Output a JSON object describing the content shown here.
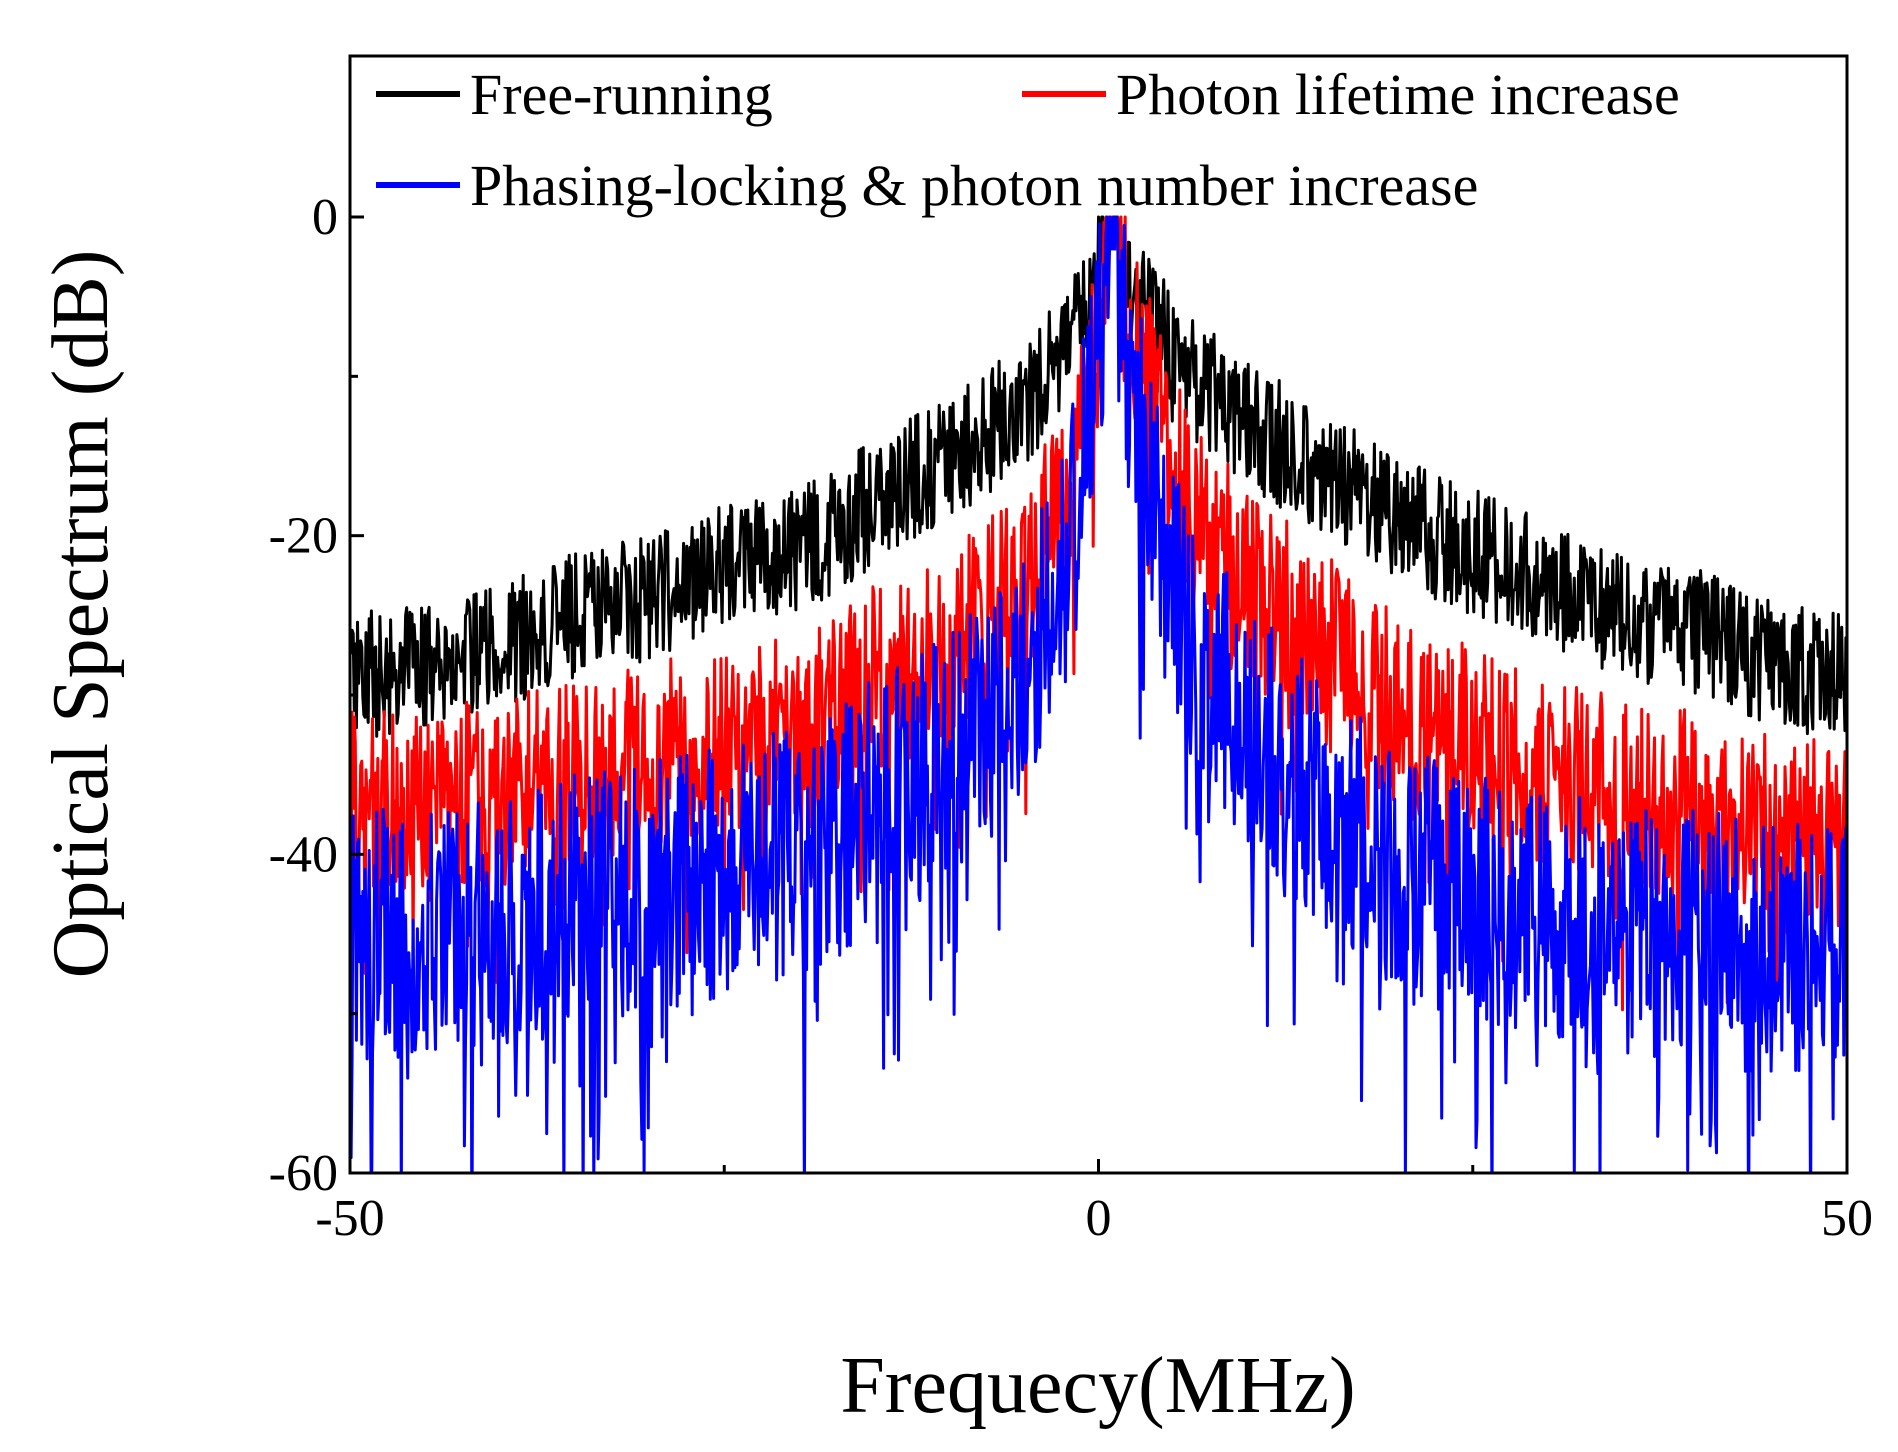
{
  "chart_data": {
    "type": "line",
    "title": "",
    "xlabel": "Frequecy(MHz)",
    "ylabel": "Optical Spectrum (dB)",
    "xlim": [
      -50,
      50
    ],
    "ylim": [
      -60,
      10
    ],
    "x_ticks": [
      -50,
      0,
      50
    ],
    "x_tick_labels": [
      "-50",
      "0",
      "50"
    ],
    "y_ticks": [
      0,
      -20,
      -40,
      -60
    ],
    "y_tick_labels": [
      "0",
      "-20",
      "-40",
      "-60"
    ],
    "grid": false,
    "legend_position": "top",
    "series": [
      {
        "name": "Free-running",
        "color": "#000000",
        "x": [
          -50,
          -45,
          -40,
          -35,
          -30,
          -25,
          -20,
          -15,
          -10,
          -5,
          -2,
          0,
          1,
          2,
          5,
          10,
          15,
          20,
          25,
          30,
          35,
          40,
          45,
          50
        ],
        "mean": [
          -29,
          -28,
          -27,
          -25,
          -24,
          -22,
          -21,
          -18,
          -15,
          -12,
          -8,
          -3,
          -1,
          -4,
          -9,
          -13,
          -16,
          -19,
          -21,
          -23,
          -25,
          -26,
          -28,
          -29
        ],
        "noise": 4
      },
      {
        "name": "Photon lifetime increase",
        "color": "#ff0000",
        "x": [
          -50,
          -45,
          -40,
          -35,
          -30,
          -25,
          -20,
          -15,
          -10,
          -5,
          -2,
          0,
          1,
          2,
          5,
          10,
          15,
          20,
          25,
          30,
          35,
          40,
          45,
          50
        ],
        "mean": [
          -37,
          -37,
          -36,
          -35,
          -34,
          -33,
          -32,
          -29,
          -27,
          -23,
          -17,
          -7,
          -1,
          -6,
          -16,
          -23,
          -27,
          -31,
          -33,
          -35,
          -36,
          -37,
          -38,
          -39
        ],
        "noise": 6
      },
      {
        "name": "Phasing-locking & photon number increase",
        "color": "#0000ff",
        "x": [
          -50,
          -45,
          -40,
          -35,
          -30,
          -25,
          -20,
          -15,
          -10,
          -5,
          -2,
          0,
          1,
          2,
          5,
          10,
          15,
          20,
          25,
          30,
          35,
          40,
          45,
          50
        ],
        "mean": [
          -45,
          -45,
          -44,
          -43,
          -42,
          -41,
          -40,
          -37,
          -34,
          -29,
          -21,
          -9,
          -1,
          -9,
          -24,
          -32,
          -37,
          -41,
          -43,
          -44,
          -45,
          -45,
          -46,
          -46
        ],
        "noise": 8
      }
    ]
  }
}
